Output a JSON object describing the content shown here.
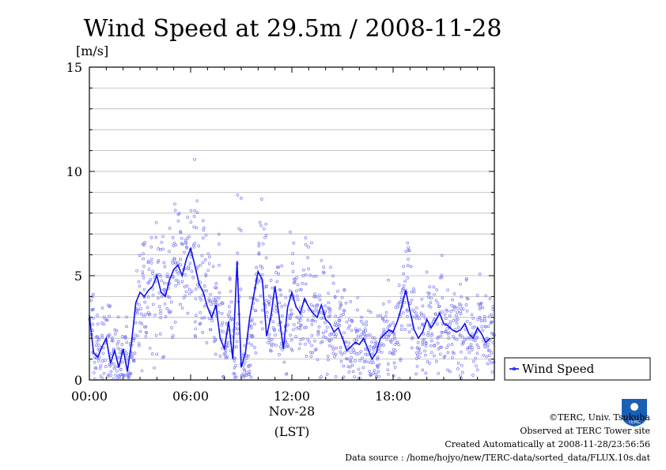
{
  "chart_data": {
    "type": "line",
    "title": "Wind Speed at 29.5m / 2008-11-28",
    "ylabel": "[m/s]",
    "xlabel": "(LST)",
    "date_label": "Nov-28",
    "ylim": [
      0,
      15
    ],
    "xlim_hours": [
      0,
      24
    ],
    "yticks": [
      "0",
      "5",
      "10",
      "15"
    ],
    "xticks": [
      {
        "hour": 0,
        "label": "00:00"
      },
      {
        "hour": 6,
        "label": "06:00"
      },
      {
        "hour": 12,
        "label": "12:00"
      },
      {
        "hour": 18,
        "label": "18:00"
      }
    ],
    "grid": true,
    "legend_position": "right",
    "series": [
      {
        "name": "Wind Speed",
        "color": "#1010ee",
        "point_color": "#7b7bf2",
        "x_hours": [
          0.0,
          0.25,
          0.5,
          0.75,
          1.0,
          1.25,
          1.5,
          1.75,
          2.0,
          2.25,
          2.5,
          2.75,
          3.0,
          3.25,
          3.5,
          3.75,
          4.0,
          4.25,
          4.5,
          4.75,
          5.0,
          5.25,
          5.5,
          5.75,
          6.0,
          6.25,
          6.5,
          6.75,
          7.0,
          7.25,
          7.5,
          7.75,
          8.0,
          8.25,
          8.5,
          8.75,
          9.0,
          9.25,
          9.5,
          9.75,
          10.0,
          10.25,
          10.5,
          10.75,
          11.0,
          11.25,
          11.5,
          11.75,
          12.0,
          12.25,
          12.5,
          12.75,
          13.0,
          13.25,
          13.5,
          13.75,
          14.0,
          14.25,
          14.5,
          14.75,
          15.0,
          15.25,
          15.5,
          15.75,
          16.0,
          16.25,
          16.5,
          16.75,
          17.0,
          17.25,
          17.5,
          17.75,
          18.0,
          18.25,
          18.5,
          18.75,
          19.0,
          19.25,
          19.5,
          19.75,
          20.0,
          20.25,
          20.5,
          20.75,
          21.0,
          21.25,
          21.5,
          21.75,
          22.0,
          22.25,
          22.5,
          22.75,
          23.0,
          23.25,
          23.5,
          23.75
        ],
        "values": [
          3.1,
          1.3,
          1.1,
          1.6,
          2.0,
          0.8,
          1.4,
          0.6,
          1.5,
          0.4,
          1.8,
          3.7,
          4.2,
          4.0,
          4.3,
          4.5,
          5.0,
          4.2,
          4.0,
          4.8,
          5.3,
          5.5,
          5.0,
          5.8,
          6.3,
          5.5,
          4.6,
          4.2,
          3.5,
          3.0,
          3.6,
          2.0,
          1.5,
          2.8,
          1.0,
          5.7,
          0.6,
          1.3,
          3.0,
          4.1,
          5.2,
          4.8,
          2.1,
          3.0,
          4.5,
          3.0,
          1.5,
          3.5,
          4.2,
          3.5,
          3.2,
          3.9,
          3.5,
          3.2,
          3.0,
          3.6,
          2.9,
          2.7,
          2.3,
          2.5,
          2.0,
          1.4,
          1.6,
          1.8,
          1.7,
          2.0,
          1.5,
          1.0,
          1.3,
          2.0,
          2.2,
          2.4,
          2.3,
          2.8,
          3.5,
          4.3,
          3.3,
          2.4,
          2.0,
          2.3,
          2.9,
          2.5,
          2.8,
          3.2,
          2.7,
          2.6,
          2.4,
          2.3,
          2.4,
          2.7,
          2.2,
          2.0,
          2.5,
          2.2,
          1.8,
          2.0
        ]
      }
    ]
  },
  "legend": {
    "label": "Wind Speed"
  },
  "footer": {
    "copyright": "©TERC, Univ. Tsukuba",
    "observed": "Observed at TERC Tower site",
    "created": "Created Automatically at 2008-11-28/23:56:56",
    "source": "Data source : /home/hojyo/new/TERC-data/sorted_data/FLUX.10s.dat",
    "logo_text": "TERC"
  }
}
